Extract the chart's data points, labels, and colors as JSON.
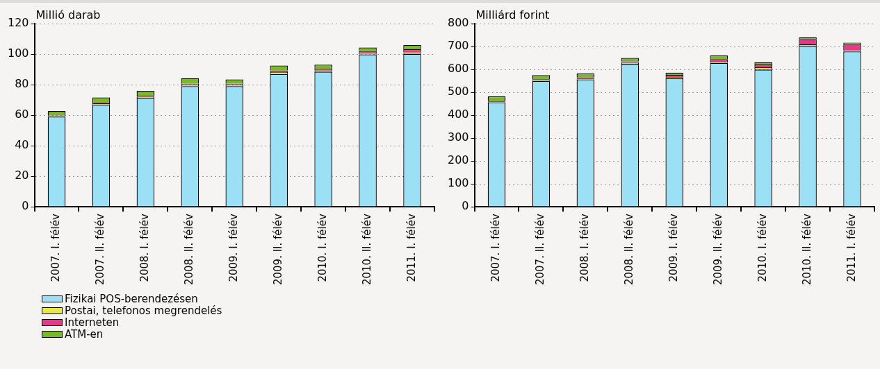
{
  "chart_data": [
    {
      "type": "bar",
      "ylabel": "Millió darab",
      "stacked": true,
      "categories": [
        "2007. I. félév",
        "2007. II. félév",
        "2008. I. félév",
        "2008. II. félév",
        "2009. I. félév",
        "2009. II. félév",
        "2010. I. félév",
        "2010. II. félév",
        "2011. I. félév"
      ],
      "series": [
        {
          "name": "Fizikai POS-berendezésen",
          "color": "#9be0f4",
          "values": [
            59,
            67,
            71.4,
            79,
            79,
            87,
            88.4,
            99.8,
            100.2
          ]
        },
        {
          "name": "Postai, telefonos megrendelés",
          "color": "#e8e84a",
          "values": [
            0.5,
            0.7,
            0.7,
            0.8,
            0.8,
            1.5,
            0.8,
            0.8,
            1
          ]
        },
        {
          "name": "Interneten",
          "color": "#e8388a",
          "values": [
            0.3,
            0.5,
            0.6,
            0.8,
            0.8,
            0.8,
            1.2,
            1.5,
            2
          ]
        },
        {
          "name": "ATM-en",
          "color": "#7ab82a",
          "values": [
            2.9,
            3.4,
            3.2,
            3.6,
            2.8,
            3.2,
            2.7,
            2.2,
            2.7
          ]
        }
      ],
      "ylim": [
        0,
        120
      ],
      "yticks": [
        0,
        20,
        40,
        60,
        80,
        100,
        120
      ],
      "grid": "y",
      "legend": "bottom"
    },
    {
      "type": "bar",
      "ylabel": "Milliárd forint",
      "stacked": true,
      "categories": [
        "2007. I. félév",
        "2007. II. félév",
        "2008. I. félév",
        "2008. II. félév",
        "2009. I. félév",
        "2009. II. félév",
        "2010. I. félév",
        "2010. II. félév",
        "2011. I. félév"
      ],
      "series": [
        {
          "color": "#9be0f4",
          "values": [
            456,
            549,
            556,
            624,
            561,
            628,
            599,
            703,
            678
          ]
        },
        {
          "color": "#e8e84a",
          "values": [
            4,
            4,
            4,
            5,
            5,
            5,
            10,
            6,
            5
          ]
        },
        {
          "color": "#e8388a",
          "values": [
            3,
            4,
            5,
            6,
            10,
            12,
            12,
            22,
            28
          ]
        },
        {
          "color": "#7ab82a",
          "values": [
            19,
            18,
            17,
            15,
            10,
            16,
            10,
            9,
            6
          ]
        }
      ],
      "ylim": [
        0,
        800
      ],
      "yticks": [
        0,
        100,
        200,
        300,
        400,
        500,
        600,
        700,
        800
      ],
      "grid": "y",
      "legend": false
    }
  ]
}
